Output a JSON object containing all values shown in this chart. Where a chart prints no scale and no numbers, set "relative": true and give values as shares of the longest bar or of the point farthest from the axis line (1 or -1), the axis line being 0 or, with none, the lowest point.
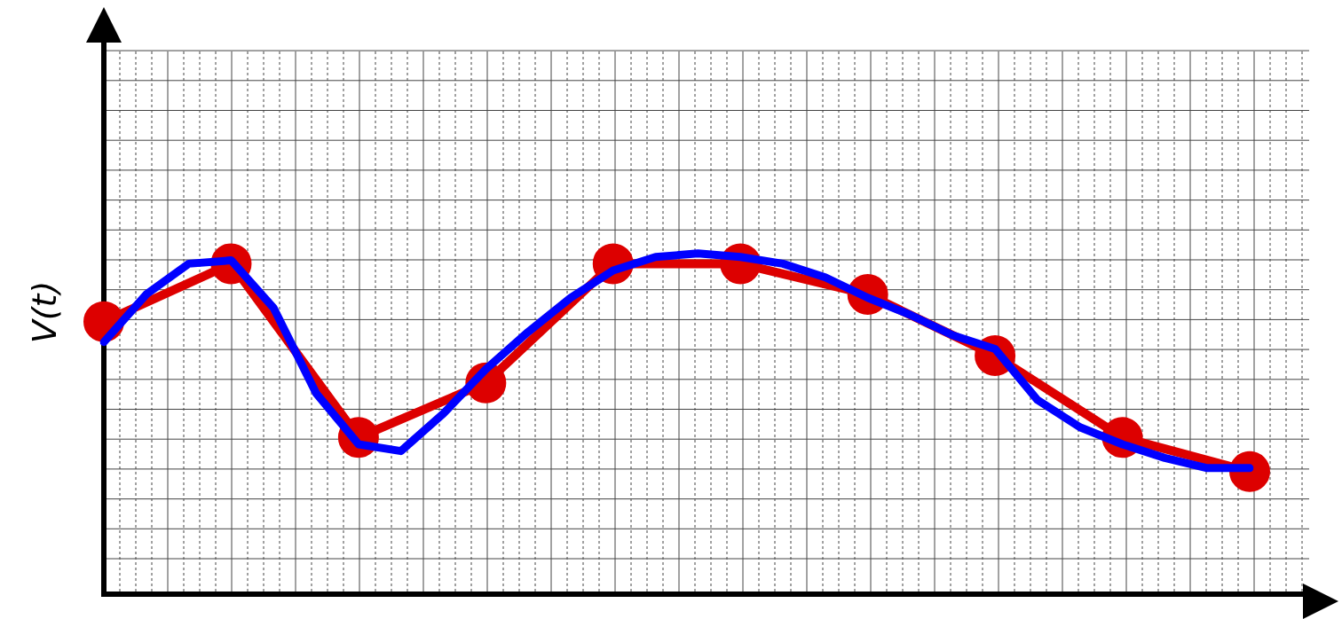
{
  "chart_data": {
    "type": "line",
    "ylabel": "V(t)",
    "relative": true,
    "tick_labels": false,
    "grid": true,
    "legend": false,
    "categories": [
      null,
      null,
      null,
      null,
      null,
      null,
      null,
      null,
      null,
      null,
      null,
      null,
      null,
      null,
      null,
      null,
      null,
      null,
      null,
      null,
      null,
      null,
      null,
      null,
      null,
      null,
      null,
      null
    ],
    "series": [
      {
        "color": "#dd0000",
        "marker": "circle",
        "values": [
          0.8,
          null,
          null,
          0.97,
          null,
          null,
          0.46,
          null,
          null,
          0.62,
          null,
          null,
          0.97,
          null,
          null,
          0.97,
          null,
          null,
          0.88,
          null,
          null,
          0.7,
          null,
          null,
          0.46,
          null,
          null,
          0.36
        ]
      },
      {
        "color": "#0000ff",
        "marker": "none",
        "values": [
          0.74,
          0.88,
          0.97,
          0.98,
          0.84,
          0.59,
          0.44,
          0.42,
          0.53,
          0.66,
          0.77,
          0.87,
          0.95,
          0.99,
          1.0,
          0.99,
          0.97,
          0.93,
          0.87,
          0.82,
          0.76,
          0.72,
          0.57,
          0.49,
          0.44,
          0.4,
          0.37,
          0.37
        ]
      }
    ]
  }
}
